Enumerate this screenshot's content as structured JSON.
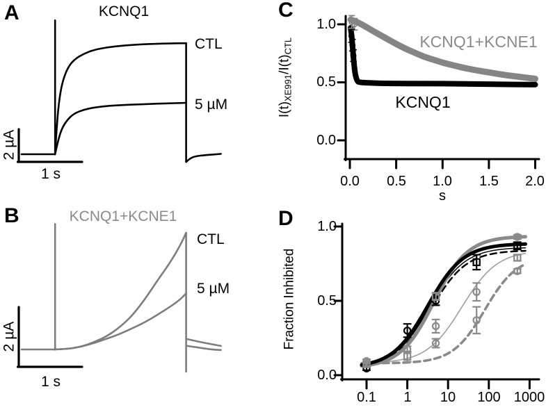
{
  "panels": {
    "a": {
      "letter": "A"
    },
    "b": {
      "letter": "B"
    },
    "c": {
      "letter": "C"
    },
    "d": {
      "letter": "D"
    }
  },
  "colors": {
    "black": "#000000",
    "gray": "#8a8a8a",
    "gray_trace": "#7d7d7d",
    "gray_band": "#858585",
    "gray_thin": "#9e9e9e"
  },
  "chart_data": [
    {
      "panel": "A",
      "type": "line",
      "title": "KCNQ1",
      "x_unit": "s",
      "y_unit": "µA",
      "color": "#000000",
      "trace_labels": {
        "ctl": "CTL",
        "dose": "5 µM"
      },
      "scalebar": {
        "v_label": "2 µA",
        "v_value": 2,
        "h_label": "1 s",
        "h_value": 1
      },
      "pulse": {
        "on_s": 0.53,
        "off_s": 2.6
      },
      "traces": {
        "baseline": [
          [
            0,
            0
          ],
          [
            0.53,
            0
          ]
        ],
        "spike": [
          [
            0.53,
            0
          ],
          [
            0.53,
            8.2
          ]
        ],
        "ctl": [
          [
            0.53,
            0
          ],
          [
            0.56,
            2.0
          ],
          [
            0.6,
            3.5
          ],
          [
            0.65,
            4.5
          ],
          [
            0.73,
            5.3
          ],
          [
            0.83,
            5.8
          ],
          [
            1.0,
            6.2
          ],
          [
            1.2,
            6.45
          ],
          [
            1.5,
            6.62
          ],
          [
            1.8,
            6.72
          ],
          [
            2.2,
            6.78
          ],
          [
            2.6,
            6.8
          ]
        ],
        "dose": [
          [
            0.53,
            0
          ],
          [
            0.58,
            0.9
          ],
          [
            0.64,
            1.6
          ],
          [
            0.72,
            2.1
          ],
          [
            0.83,
            2.5
          ],
          [
            1.0,
            2.75
          ],
          [
            1.2,
            2.9
          ],
          [
            1.5,
            3.0
          ],
          [
            2.0,
            3.08
          ],
          [
            2.6,
            3.15
          ]
        ],
        "end": [
          [
            2.6,
            6.8
          ],
          [
            2.6,
            -0.47
          ]
        ],
        "tail": [
          [
            2.6,
            -0.47
          ],
          [
            2.66,
            -0.25
          ],
          [
            2.75,
            -0.12
          ],
          [
            2.9,
            -0.05
          ],
          [
            3.15,
            0.02
          ]
        ]
      }
    },
    {
      "panel": "B",
      "type": "line",
      "title": "KCNQ1+KCNE1",
      "x_unit": "s",
      "y_unit": "µA",
      "color": "#7d7d7d",
      "trace_labels": {
        "ctl": "CTL",
        "dose": "5 µM"
      },
      "scalebar": {
        "v_label": "2 µA",
        "v_value": 2,
        "h_label": "1 s",
        "h_value": 1
      },
      "pulse": {
        "on_s": 0.53,
        "off_s": 2.6
      },
      "traces": {
        "baseline": [
          [
            0,
            0
          ],
          [
            0.53,
            0
          ]
        ],
        "spike": [
          [
            0.53,
            0
          ],
          [
            0.53,
            4.25
          ]
        ],
        "ctl": [
          [
            0.53,
            0
          ],
          [
            0.75,
            0.02
          ],
          [
            0.95,
            0.1
          ],
          [
            1.15,
            0.25
          ],
          [
            1.35,
            0.45
          ],
          [
            1.55,
            0.75
          ],
          [
            1.75,
            1.15
          ],
          [
            1.95,
            1.7
          ],
          [
            2.15,
            2.35
          ],
          [
            2.35,
            2.95
          ],
          [
            2.5,
            3.5
          ],
          [
            2.6,
            3.95
          ]
        ],
        "dose": [
          [
            0.53,
            0
          ],
          [
            0.75,
            0.02
          ],
          [
            0.95,
            0.1
          ],
          [
            1.15,
            0.22
          ],
          [
            1.35,
            0.37
          ],
          [
            1.55,
            0.52
          ],
          [
            1.75,
            0.72
          ],
          [
            1.95,
            0.92
          ],
          [
            2.15,
            1.18
          ],
          [
            2.35,
            1.45
          ],
          [
            2.5,
            1.68
          ],
          [
            2.6,
            1.9
          ]
        ],
        "end": [
          [
            2.6,
            3.95
          ],
          [
            2.6,
            -0.75
          ]
        ],
        "tail_ctl": [
          [
            2.62,
            0.35
          ],
          [
            2.8,
            0.26
          ],
          [
            3.0,
            0.18
          ],
          [
            3.15,
            0.12
          ]
        ],
        "tail_dose": [
          [
            2.62,
            0.12
          ],
          [
            2.8,
            0.06
          ],
          [
            3.0,
            0.0
          ],
          [
            3.15,
            -0.02
          ]
        ]
      }
    },
    {
      "panel": "C",
      "type": "scatter",
      "xlabel": "s",
      "ylabel_parts": [
        "I(t)",
        "XE991",
        "/I(t)",
        "CTL"
      ],
      "xlim": [
        0,
        2
      ],
      "ylim": [
        -0.17,
        1.1
      ],
      "yticks": [
        "1.0",
        "0.5",
        "0.0"
      ],
      "ytick_values": [
        1.0,
        0.5,
        0.0
      ],
      "xticks": [
        "0.0",
        "0.5",
        "1.0",
        "1.5",
        "2.0"
      ],
      "xtick_values": [
        0,
        0.5,
        1.0,
        1.5,
        2.0
      ],
      "series": [
        {
          "name": "KCNQ1",
          "color": "#000000",
          "band_width": 8,
          "points": [
            [
              0.008,
              0.97
            ],
            [
              0.02,
              0.9
            ],
            [
              0.03,
              0.8
            ],
            [
              0.04,
              0.7
            ],
            [
              0.05,
              0.62
            ],
            [
              0.06,
              0.56
            ],
            [
              0.08,
              0.51
            ],
            [
              0.1,
              0.5
            ],
            [
              0.2,
              0.495
            ],
            [
              0.4,
              0.49
            ],
            [
              0.8,
              0.49
            ],
            [
              1.2,
              0.487
            ],
            [
              1.6,
              0.483
            ],
            [
              2.0,
              0.48
            ]
          ]
        },
        {
          "name": "KCNQ1+KCNE1",
          "color": "#858585",
          "band_width": 9,
          "points": [
            [
              0.008,
              1.04
            ],
            [
              0.05,
              1.03
            ],
            [
              0.1,
              1.01
            ],
            [
              0.15,
              0.99
            ],
            [
              0.2,
              0.965
            ],
            [
              0.3,
              0.92
            ],
            [
              0.4,
              0.875
            ],
            [
              0.5,
              0.83
            ],
            [
              0.6,
              0.79
            ],
            [
              0.7,
              0.755
            ],
            [
              0.8,
              0.72
            ],
            [
              0.9,
              0.695
            ],
            [
              1.0,
              0.67
            ],
            [
              1.1,
              0.65
            ],
            [
              1.2,
              0.63
            ],
            [
              1.35,
              0.605
            ],
            [
              1.5,
              0.585
            ],
            [
              1.7,
              0.56
            ],
            [
              1.85,
              0.545
            ],
            [
              2.0,
              0.53
            ]
          ]
        }
      ],
      "error_marks": {
        "black": [
          [
            0.018,
            0.9,
            0.055
          ],
          [
            0.028,
            0.82,
            0.05
          ],
          [
            0.038,
            0.73,
            0.05
          ]
        ],
        "gray": [
          [
            0.02,
            1.02,
            0.055
          ],
          [
            0.05,
            1.0,
            0.05
          ]
        ]
      }
    },
    {
      "panel": "D",
      "type": "dose-response",
      "ylabel": "Fraction Inhibited",
      "xscale": "log",
      "xlim": [
        0.05,
        1200
      ],
      "ylim": [
        -0.05,
        1.0
      ],
      "yticks": [
        "1.0",
        "0.5",
        "0.0"
      ],
      "ytick_values": [
        1.0,
        0.5,
        0.0
      ],
      "xticks": [
        "0.1",
        "1",
        "10",
        "100",
        "1000"
      ],
      "xtick_values": [
        0.1,
        1,
        10,
        100,
        1000
      ],
      "curves": [
        {
          "name": "thin-gray-solid",
          "color": "#9e9e9e",
          "width": 1.6,
          "dash": null,
          "bottom": 0.08,
          "top": 0.84,
          "ec50": 22,
          "hill": 1.0
        },
        {
          "name": "thick-gray-dashed",
          "color": "#8a8a8a",
          "width": 3.6,
          "dash": "9 6",
          "bottom": 0.08,
          "top": 0.8,
          "ec50": 80,
          "hill": 1.1
        },
        {
          "name": "black-dashed",
          "color": "#000000",
          "width": 2.5,
          "dash": "9 6",
          "bottom": 0.05,
          "top": 0.84,
          "ec50": 3.8,
          "hill": 1.0
        },
        {
          "name": "thin-black-solid",
          "color": "#000000",
          "width": 1.5,
          "dash": null,
          "bottom": 0.05,
          "top": 0.86,
          "ec50": 3.5,
          "hill": 1.0
        },
        {
          "name": "thick-gray-solid",
          "color": "#8a8a8a",
          "width": 5,
          "dash": null,
          "bottom": 0.05,
          "top": 0.935,
          "ec50": 4.5,
          "hill": 1.05
        },
        {
          "name": "thick-black-solid",
          "color": "#000000",
          "width": 5,
          "dash": null,
          "bottom": 0.05,
          "top": 0.885,
          "ec50": 3.2,
          "hill": 1.0
        }
      ],
      "points": [
        {
          "x": 0.1,
          "y": 0.045,
          "err": 0.012,
          "color": "black",
          "shape": "circle"
        },
        {
          "x": 0.1,
          "y": 0.075,
          "err": 0.012,
          "color": "gray",
          "shape": "square"
        },
        {
          "x": 0.1,
          "y": 0.095,
          "err": 0.012,
          "color": "gray",
          "shape": "circle"
        },
        {
          "x": 1,
          "y": 0.3,
          "err": 0.045,
          "color": "black",
          "shape": "circle"
        },
        {
          "x": 1,
          "y": 0.175,
          "err": 0.02,
          "color": "gray",
          "shape": "circle"
        },
        {
          "x": 1,
          "y": 0.125,
          "err": 0.035,
          "color": "gray",
          "shape": "square"
        },
        {
          "x": 5,
          "y": 0.5,
          "err": 0.03,
          "color": "black",
          "shape": "circle"
        },
        {
          "x": 5,
          "y": 0.53,
          "err": 0.025,
          "color": "gray",
          "shape": "square"
        },
        {
          "x": 5,
          "y": 0.33,
          "err": 0.045,
          "color": "gray",
          "shape": "circle"
        },
        {
          "x": 5,
          "y": 0.215,
          "err": 0.03,
          "color": "gray",
          "shape": "circle"
        },
        {
          "x": 50,
          "y": 0.76,
          "err": 0.05,
          "color": "black",
          "shape": "square"
        },
        {
          "x": 50,
          "y": 0.56,
          "err": 0.06,
          "color": "gray",
          "shape": "circle"
        },
        {
          "x": 50,
          "y": 0.37,
          "err": 0.09,
          "color": "gray",
          "shape": "circle"
        },
        {
          "x": 500,
          "y": 0.93,
          "err": 0.015,
          "color": "gray",
          "shape": "circle"
        },
        {
          "x": 500,
          "y": 0.87,
          "err": 0.025,
          "color": "black",
          "shape": "square"
        },
        {
          "x": 500,
          "y": 0.79,
          "err": 0.02,
          "color": "gray",
          "shape": "square"
        },
        {
          "x": 500,
          "y": 0.7,
          "err": 0.015,
          "color": "gray",
          "shape": "circle"
        }
      ]
    }
  ]
}
